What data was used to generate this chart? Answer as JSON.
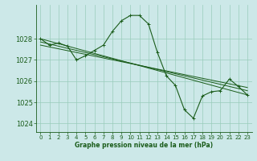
{
  "title": "Graphe pression niveau de la mer (hPa)",
  "bg_color": "#cce8e8",
  "grid_color": "#99ccbb",
  "line_color": "#1a5c1a",
  "xlim": [
    -0.5,
    23.5
  ],
  "ylim": [
    1023.6,
    1029.6
  ],
  "yticks": [
    1024,
    1025,
    1026,
    1027,
    1028
  ],
  "xticks": [
    0,
    1,
    2,
    3,
    4,
    5,
    6,
    7,
    8,
    9,
    10,
    11,
    12,
    13,
    14,
    15,
    16,
    17,
    18,
    19,
    20,
    21,
    22,
    23
  ],
  "main_series": {
    "x": [
      0,
      1,
      2,
      3,
      4,
      5,
      6,
      7,
      8,
      9,
      10,
      11,
      12,
      13,
      14,
      15,
      16,
      17,
      18,
      19,
      20,
      21,
      22,
      23
    ],
    "y": [
      1028.0,
      1027.7,
      1027.8,
      1027.65,
      1027.0,
      1027.2,
      1027.45,
      1027.7,
      1028.35,
      1028.85,
      1029.1,
      1029.1,
      1028.7,
      1027.35,
      1026.25,
      1025.8,
      1024.65,
      1024.25,
      1025.3,
      1025.5,
      1025.55,
      1026.1,
      1025.75,
      1025.35
    ]
  },
  "trend_lines": [
    {
      "x": [
        0,
        23
      ],
      "y": [
        1028.0,
        1025.35
      ]
    },
    {
      "x": [
        0,
        23
      ],
      "y": [
        1027.85,
        1025.55
      ]
    },
    {
      "x": [
        0,
        23
      ],
      "y": [
        1027.7,
        1025.7
      ]
    }
  ]
}
